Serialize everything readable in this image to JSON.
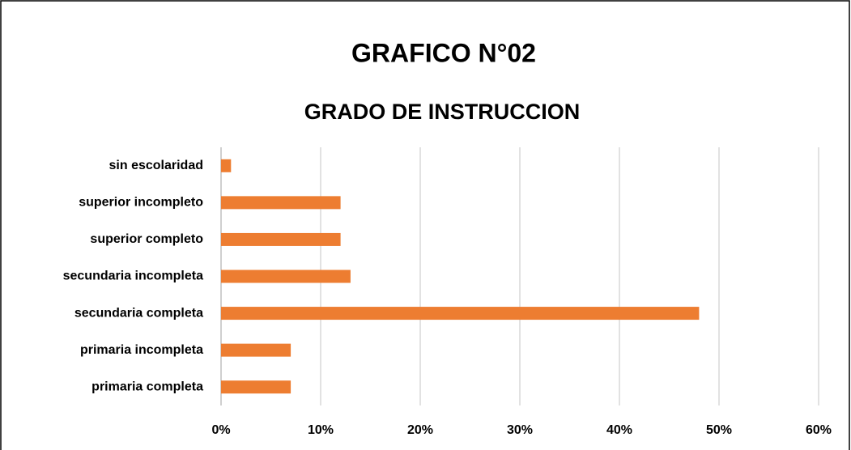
{
  "chart_data": {
    "type": "bar",
    "orientation": "horizontal",
    "title": "GRAFICO N°02",
    "subtitle": "GRADO DE INSTRUCCION",
    "categories": [
      "primaria completa",
      "primaria incompleta",
      "secundaria completa",
      "secundaria incompleta",
      "superior completo",
      "superior incompleto",
      "sin escolaridad"
    ],
    "values": [
      7,
      7,
      48,
      13,
      12,
      12,
      1
    ],
    "color": "#ed7d31",
    "xlim": [
      0,
      60
    ],
    "xticks": [
      {
        "value": 0,
        "label": "0%"
      },
      {
        "value": 10,
        "label": "10%"
      },
      {
        "value": 20,
        "label": "20%"
      },
      {
        "value": 30,
        "label": "30%"
      },
      {
        "value": 40,
        "label": "40%"
      },
      {
        "value": 50,
        "label": "50%"
      },
      {
        "value": 60,
        "label": "60%"
      }
    ],
    "grid": true
  }
}
